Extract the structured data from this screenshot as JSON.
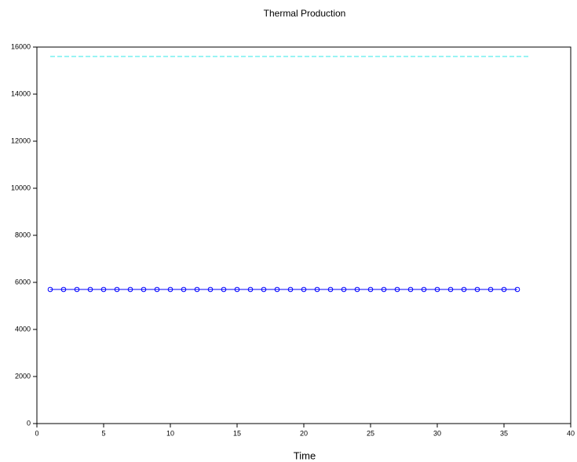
{
  "chart_data": {
    "type": "line",
    "title": "Thermal Production",
    "x_label": "Time",
    "xlim": [
      0,
      40
    ],
    "xticks": [
      0,
      5,
      10,
      15,
      20,
      25,
      30,
      35,
      40
    ],
    "ylim": [
      0,
      16000
    ],
    "yticks": [
      0,
      2000,
      4000,
      6000,
      8000,
      10000,
      12000,
      14000,
      16000
    ],
    "series": [
      {
        "color": "#0000ff",
        "marker": "circle",
        "dash": false,
        "x": [
          1,
          2,
          3,
          4,
          5,
          6,
          7,
          8,
          9,
          10,
          11,
          12,
          13,
          14,
          15,
          16,
          17,
          18,
          19,
          20,
          21,
          22,
          23,
          24,
          25,
          26,
          27,
          28,
          29,
          30,
          31,
          32,
          33,
          34,
          35,
          36
        ],
        "values": [
          5700,
          5700,
          5700,
          5700,
          5700,
          5700,
          5700,
          5700,
          5700,
          5700,
          5700,
          5700,
          5700,
          5700,
          5700,
          5700,
          5700,
          5700,
          5700,
          5700,
          5700,
          5700,
          5700,
          5700,
          5700,
          5700,
          5700,
          5700,
          5700,
          5700,
          5700,
          5700,
          5700,
          5700,
          5700,
          5700
        ]
      },
      {
        "color": "#33e8e8",
        "marker": "none",
        "dash": true,
        "x": [
          1,
          37
        ],
        "values": [
          15600,
          15600
        ]
      }
    ]
  }
}
